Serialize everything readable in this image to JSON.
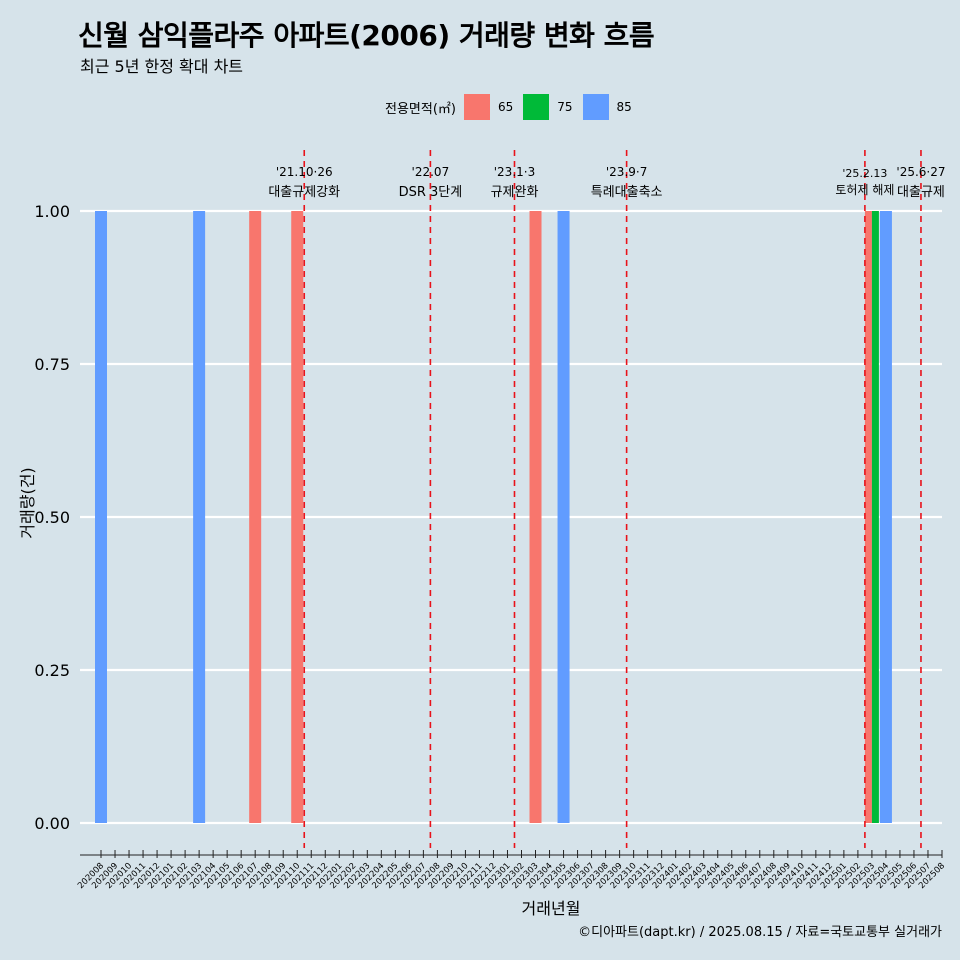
{
  "header": {
    "title": "신월 삼익플라주 아파트(2006) 거래량 변화 흐름",
    "subtitle": "최근 5년 한정 확대 차트"
  },
  "footer": {
    "caption": "©디아파트(dapt.kr) / 2025.08.15 / 자료=국토교통부 실거래가"
  },
  "legend": {
    "title": "전용면적(㎡)",
    "items": [
      {
        "label": "65",
        "color": "#f8766d"
      },
      {
        "label": "75",
        "color": "#00ba38"
      },
      {
        "label": "85",
        "color": "#619cff"
      }
    ]
  },
  "chart_data": {
    "type": "bar",
    "xlabel": "거래년월",
    "ylabel": "거래량(건)",
    "ylim": [
      0,
      1
    ],
    "y_ticks": [
      "0.00",
      "0.25",
      "0.50",
      "0.75",
      "1.00"
    ],
    "grid": "horizontal",
    "categories": [
      "202008",
      "202009",
      "202010",
      "202011",
      "202012",
      "202101",
      "202102",
      "202103",
      "202104",
      "202105",
      "202106",
      "202107",
      "202108",
      "202109",
      "202110",
      "202111",
      "202112",
      "202201",
      "202202",
      "202203",
      "202204",
      "202205",
      "202206",
      "202207",
      "202208",
      "202209",
      "202210",
      "202211",
      "202212",
      "202301",
      "202302",
      "202303",
      "202304",
      "202305",
      "202306",
      "202307",
      "202308",
      "202309",
      "202310",
      "202311",
      "202312",
      "202401",
      "202402",
      "202403",
      "202404",
      "202405",
      "202406",
      "202407",
      "202408",
      "202409",
      "202410",
      "202411",
      "202412",
      "202501",
      "202502",
      "202503",
      "202504",
      "202505",
      "202506",
      "202507",
      "202508"
    ],
    "series": [
      {
        "name": "65",
        "color": "#f8766d",
        "points": [
          {
            "x": "202107",
            "y": 1
          },
          {
            "x": "202110",
            "y": 1
          },
          {
            "x": "202303",
            "y": 1
          },
          {
            "x": "202503",
            "y": 1
          }
        ]
      },
      {
        "name": "75",
        "color": "#00ba38",
        "points": [
          {
            "x": "202503",
            "y": 1
          }
        ]
      },
      {
        "name": "85",
        "color": "#619cff",
        "points": [
          {
            "x": "202008",
            "y": 1
          },
          {
            "x": "202103",
            "y": 1
          },
          {
            "x": "202305",
            "y": 1
          },
          {
            "x": "202504",
            "y": 1
          }
        ]
      }
    ],
    "annotations": [
      {
        "x": "202110",
        "date": "'21.10·26",
        "label": "대출규제강화"
      },
      {
        "x": "202207",
        "date": "'22.07",
        "label": "DSR 3단계"
      },
      {
        "x": "202301",
        "date": "'23.1·3",
        "label": "규제완화"
      },
      {
        "x": "202309",
        "date": "'23.9·7",
        "label": "특례대출축소"
      },
      {
        "x": "202502",
        "date": "'25.2.13",
        "label": "토허제 해제"
      },
      {
        "x": "202506",
        "date": "'25.6·27",
        "label": "대출규제"
      }
    ]
  }
}
